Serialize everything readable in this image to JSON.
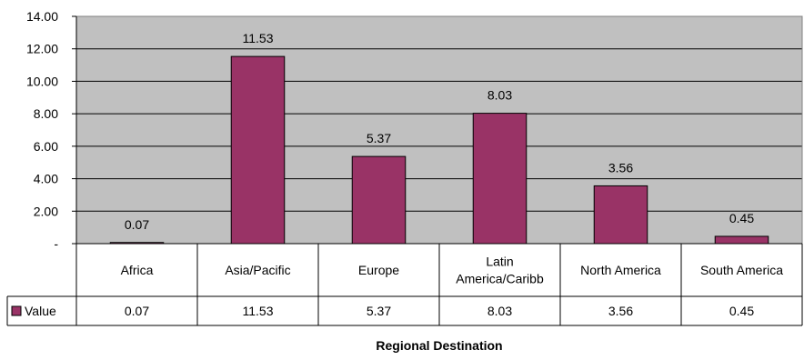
{
  "chart_data": {
    "type": "bar",
    "categories": [
      "Africa",
      "Asia/Pacific",
      "Europe",
      "Latin America/Caribb",
      "North America",
      "South America"
    ],
    "category_label_lines": [
      [
        "Africa"
      ],
      [
        "Asia/Pacific"
      ],
      [
        "Europe"
      ],
      [
        "Latin",
        "America/Caribb"
      ],
      [
        "North America"
      ],
      [
        "South America"
      ]
    ],
    "series": [
      {
        "name": "Value",
        "values": [
          0.07,
          11.53,
          5.37,
          8.03,
          3.56,
          0.45
        ],
        "color": "#993366"
      }
    ],
    "data_labels": [
      "0.07",
      "11.53",
      "5.37",
      "8.03",
      "3.56",
      "0.45"
    ],
    "y_ticks": [
      "-",
      "2.00",
      "4.00",
      "6.00",
      "8.00",
      "10.00",
      "12.00",
      "14.00"
    ],
    "ylim": [
      0,
      14
    ],
    "xlabel": "Regional Destination",
    "ylabel": "",
    "title": "",
    "grid": true,
    "plot_background": "#c0c0c0",
    "legend": "data-table",
    "data_table": true
  }
}
